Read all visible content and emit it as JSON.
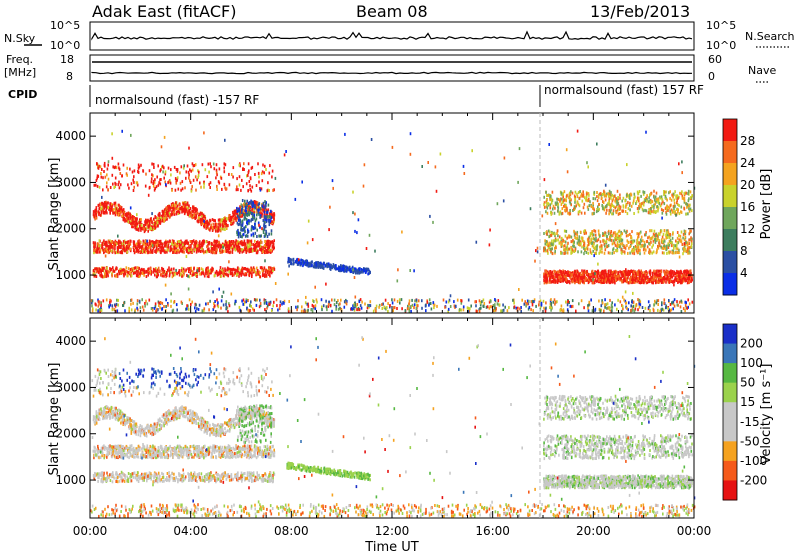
{
  "header": {
    "radar": "Adak East (fitACF)",
    "beam": "Beam 08",
    "date": "13/Feb/2013"
  },
  "summary_panels": {
    "nsky": {
      "label": "N.Sky",
      "ticks": [
        "10^5",
        "10^0"
      ]
    },
    "nsearch": {
      "label": "N.Search",
      "ticks": [
        "10^5",
        "10^0"
      ]
    },
    "freq": {
      "label_line1": "Freq.",
      "label_line2": "[MHz]",
      "ticks": [
        "18",
        "8"
      ]
    },
    "nave": {
      "label": "Nave",
      "ticks": [
        "60",
        "0"
      ]
    },
    "cpid": {
      "label": "CPID",
      "segments": [
        "normalsound (fast) -157 RF",
        "normalsound (fast) 157 RF"
      ]
    }
  },
  "colors": {
    "power_scale": [
      "#0a2ee6",
      "#2b4fa3",
      "#3d7d5e",
      "#6fa65c",
      "#c9d22c",
      "#f4a31f",
      "#f56a1e",
      "#f21a12"
    ],
    "velocity_scale": [
      "#e61212",
      "#f55a1a",
      "#f5a21f",
      "#c8c8c8",
      "#c8c8c8",
      "#9bd24c",
      "#56b842",
      "#3a76b8",
      "#1a2fc8"
    ]
  },
  "chart_data": [
    {
      "type": "heatmap",
      "name": "power",
      "xlabel": "",
      "ylabel": "Slant Range [km]",
      "x_ticks": [
        "00:00",
        "04:00",
        "08:00",
        "12:00",
        "16:00",
        "20:00",
        "00:00"
      ],
      "xlim": [
        0,
        24
      ],
      "ylim": [
        180,
        4500
      ],
      "y_ticks": [
        1000,
        2000,
        3000,
        4000
      ],
      "colorbar": {
        "label": "Power [dB]",
        "ticks": [
          4,
          8,
          12,
          16,
          20,
          24,
          28
        ],
        "range": [
          0,
          32
        ]
      },
      "cpid_change_hour": 18
    },
    {
      "type": "heatmap",
      "name": "velocity",
      "xlabel": "Time UT",
      "ylabel": "Slant Range [km]",
      "x_ticks": [
        "00:00",
        "04:00",
        "08:00",
        "12:00",
        "16:00",
        "20:00",
        "00:00"
      ],
      "xlim": [
        0,
        24
      ],
      "ylim": [
        180,
        4500
      ],
      "y_ticks": [
        1000,
        2000,
        3000,
        4000
      ],
      "colorbar": {
        "label": "Velocity [m s⁻¹]",
        "ticks": [
          200,
          100,
          50,
          15,
          -15,
          -50,
          -100,
          -200
        ],
        "range": [
          -250,
          250
        ]
      },
      "cpid_change_hour": 18
    }
  ]
}
